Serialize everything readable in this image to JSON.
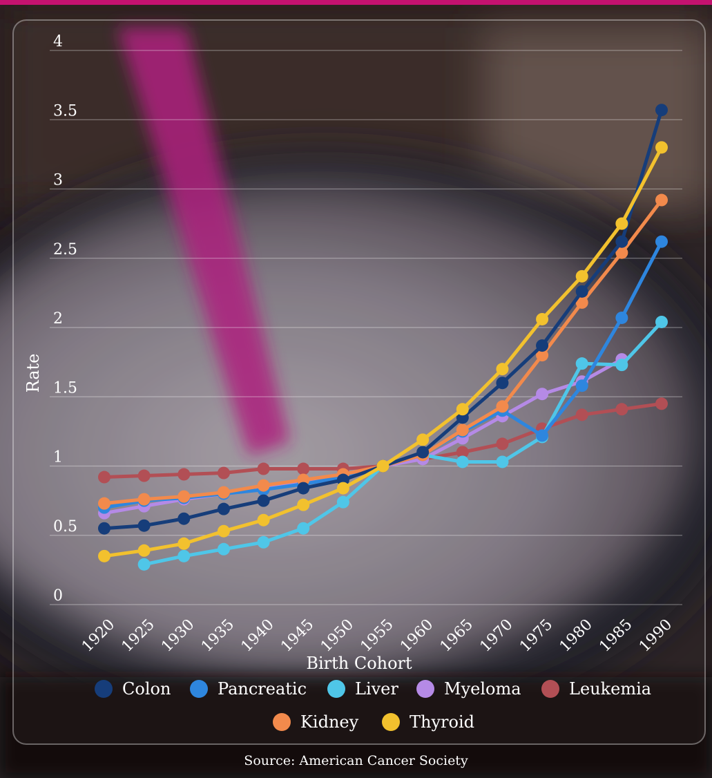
{
  "source": "Source: American Cancer Society",
  "colors": {
    "Colon": "#163d7a",
    "Pancreatic": "#2e86de",
    "Liver": "#4fc6e8",
    "Myeloma": "#b58ae6",
    "Leukemia": "#b24f55",
    "Kidney": "#f28a4c",
    "Thyroid": "#f2c12e",
    "accent": "#c4126f"
  },
  "chart_data": {
    "type": "line",
    "xlabel": "Birth Cohort",
    "ylabel": "Rate",
    "ylim": [
      0,
      4
    ],
    "yticks": [
      "0",
      "0.5",
      "1",
      "1.5",
      "2",
      "2.5",
      "3",
      "3.5",
      "4"
    ],
    "x": [
      "1920",
      "1925",
      "1930",
      "1935",
      "1940",
      "1945",
      "1950",
      "1955",
      "1960",
      "1965",
      "1970",
      "1975",
      "1980",
      "1985",
      "1990"
    ],
    "grid": true,
    "legend_position": "bottom",
    "series": [
      {
        "name": "Leukemia",
        "values": [
          0.92,
          0.93,
          0.94,
          0.95,
          0.98,
          0.98,
          0.98,
          1.0,
          1.05,
          1.1,
          1.16,
          1.27,
          1.37,
          1.41,
          1.45
        ]
      },
      {
        "name": "Myeloma",
        "values": [
          0.66,
          0.71,
          0.76,
          0.8,
          0.84,
          0.88,
          0.93,
          1.0,
          1.05,
          1.2,
          1.36,
          1.52,
          1.61,
          1.77,
          null
        ]
      },
      {
        "name": "Liver",
        "values": [
          null,
          0.29,
          0.35,
          0.4,
          0.45,
          0.55,
          0.74,
          1.0,
          1.08,
          1.03,
          1.03,
          1.21,
          1.74,
          1.73,
          2.04
        ]
      },
      {
        "name": "Pancreatic",
        "values": [
          0.7,
          0.75,
          0.77,
          0.8,
          0.83,
          0.87,
          0.92,
          1.0,
          1.08,
          1.25,
          1.4,
          1.22,
          1.58,
          2.07,
          2.62
        ]
      },
      {
        "name": "Kidney",
        "values": [
          0.73,
          0.76,
          0.78,
          0.81,
          0.86,
          0.9,
          0.94,
          1.0,
          1.08,
          1.26,
          1.43,
          1.8,
          2.18,
          2.54,
          2.92
        ]
      },
      {
        "name": "Colon",
        "values": [
          0.55,
          0.57,
          0.62,
          0.69,
          0.75,
          0.84,
          0.9,
          1.0,
          1.1,
          1.35,
          1.6,
          1.87,
          2.26,
          2.62,
          3.57
        ]
      },
      {
        "name": "Thyroid",
        "values": [
          0.35,
          0.39,
          0.44,
          0.53,
          0.61,
          0.72,
          0.84,
          1.0,
          1.19,
          1.41,
          1.7,
          2.06,
          2.37,
          2.75,
          3.3
        ]
      }
    ],
    "legend": [
      "Colon",
      "Pancreatic",
      "Liver",
      "Myeloma",
      "Leukemia",
      "Kidney",
      "Thyroid"
    ]
  }
}
